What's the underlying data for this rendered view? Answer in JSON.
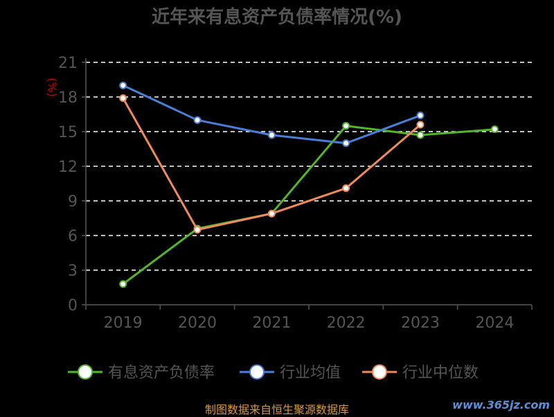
{
  "chart_data": {
    "type": "line",
    "title": "近年来有息资产负债率情况(%)",
    "ylabel": "(%)",
    "categories": [
      "2019",
      "2020",
      "2021",
      "2022",
      "2023",
      "2024"
    ],
    "ylim": [
      0,
      21
    ],
    "yticks": [
      0,
      3,
      6,
      9,
      12,
      15,
      18,
      21
    ],
    "grid": true,
    "legend_position": "bottom",
    "series": [
      {
        "name": "有息资产负债率",
        "color": "#52b82a",
        "values": [
          1.8,
          6.6,
          7.9,
          15.5,
          14.7,
          15.2
        ]
      },
      {
        "name": "行业均值",
        "color": "#4a7fd8",
        "values": [
          19.0,
          16.0,
          14.7,
          14.0,
          16.4,
          null
        ]
      },
      {
        "name": "行业中位数",
        "color": "#f08a5a",
        "values": [
          17.9,
          6.5,
          7.9,
          10.1,
          15.6,
          null
        ]
      }
    ]
  },
  "footer": "制图数据来自恒生聚源数据库",
  "watermark": "www.365jz.com"
}
